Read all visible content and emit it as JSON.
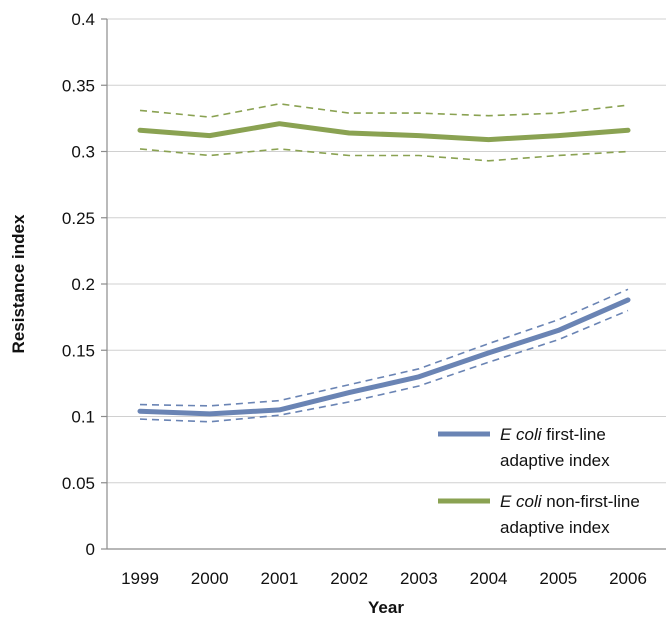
{
  "chart_data": {
    "type": "line",
    "title": "",
    "xlabel": "Year",
    "ylabel": "Resistance index",
    "x": [
      "1999",
      "2000",
      "2001",
      "2002",
      "2003",
      "2004",
      "2005",
      "2006"
    ],
    "ylim": [
      0,
      0.4
    ],
    "yticks": [
      "0",
      "0.05",
      "0.1",
      "0.15",
      "0.2",
      "0.25",
      "0.3",
      "0.35",
      "0.4"
    ],
    "grid": true,
    "legend_position": "bottom-right",
    "series": [
      {
        "name": "E coli first-line adaptive index",
        "legend_italic": "E coli",
        "legend_line1_rest": " first-line",
        "legend_line2": "adaptive index",
        "color": "#6a84b4",
        "values": [
          0.104,
          0.102,
          0.105,
          0.118,
          0.13,
          0.148,
          0.165,
          0.188
        ],
        "upper": [
          0.109,
          0.108,
          0.112,
          0.124,
          0.136,
          0.155,
          0.173,
          0.196
        ],
        "lower": [
          0.098,
          0.096,
          0.101,
          0.111,
          0.123,
          0.141,
          0.158,
          0.18
        ]
      },
      {
        "name": "E coli non-first-line adaptive index",
        "legend_italic": "E coli",
        "legend_line1_rest": " non-first-line",
        "legend_line2": "adaptive index",
        "color": "#8aa252",
        "values": [
          0.316,
          0.312,
          0.321,
          0.314,
          0.312,
          0.309,
          0.312,
          0.316
        ],
        "upper": [
          0.331,
          0.326,
          0.336,
          0.329,
          0.329,
          0.327,
          0.329,
          0.335
        ],
        "lower": [
          0.302,
          0.297,
          0.302,
          0.297,
          0.297,
          0.293,
          0.297,
          0.3
        ]
      }
    ]
  }
}
